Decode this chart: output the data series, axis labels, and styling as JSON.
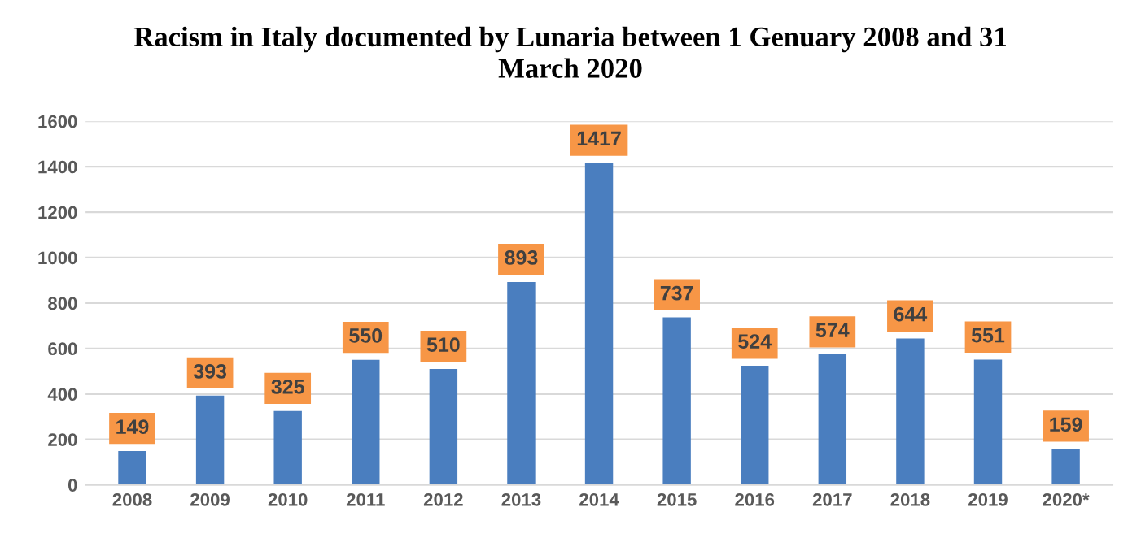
{
  "chart_data": {
    "type": "bar",
    "title": "Racism in Italy documented by Lunaria between 1 Genuary 2008 and 31\nMarch 2020",
    "categories": [
      "2008",
      "2009",
      "2010",
      "2011",
      "2012",
      "2013",
      "2014",
      "2015",
      "2016",
      "2017",
      "2018",
      "2019",
      "2020*"
    ],
    "values": [
      149,
      393,
      325,
      550,
      510,
      893,
      1417,
      737,
      524,
      574,
      644,
      551,
      159
    ],
    "color": "#4a7ebf",
    "ylim": [
      0,
      1600
    ],
    "yticks": [
      0,
      200,
      400,
      600,
      800,
      1000,
      1200,
      1400,
      1600
    ],
    "grid": "y",
    "data_labels": true
  }
}
